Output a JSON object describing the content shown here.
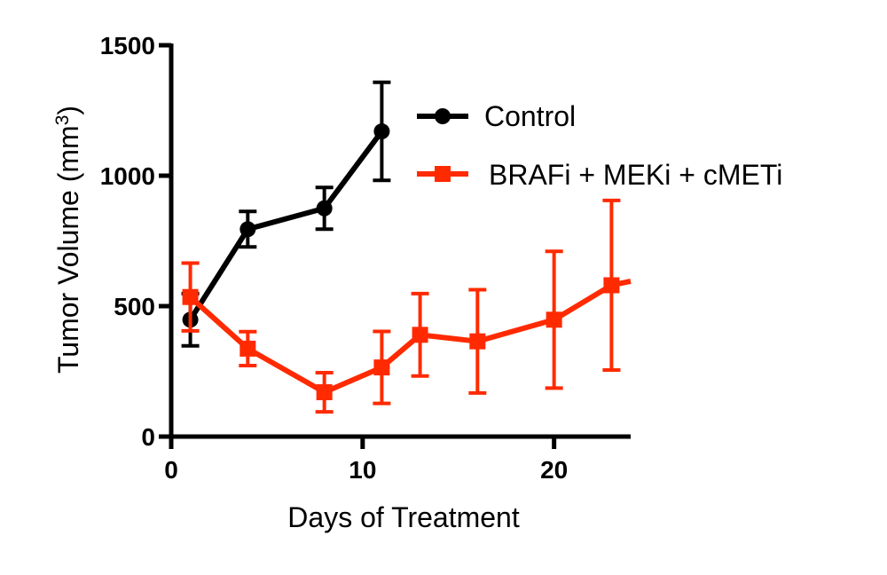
{
  "chart_data": {
    "type": "line",
    "title": "",
    "xlabel": "Days of Treatment",
    "ylabel": "Tumor Volume (mm",
    "ylabel_superscript": "3",
    "ylabel_suffix": ")",
    "xlim": [
      0,
      24
    ],
    "ylim": [
      0,
      1500
    ],
    "x_ticks": [
      0,
      10,
      20
    ],
    "x_tick_labels": [
      "0",
      "10",
      "20"
    ],
    "y_ticks": [
      0,
      500,
      1000,
      1500
    ],
    "y_tick_labels": [
      "0",
      "500",
      "1000",
      "1500"
    ],
    "grid": false,
    "legend_position": "top-right",
    "series": [
      {
        "name": "Control",
        "color": "#000000",
        "marker": "circle",
        "x": [
          1,
          4,
          8,
          11
        ],
        "y": [
          448,
          795,
          875,
          1170
        ],
        "error": [
          100,
          68,
          80,
          188
        ]
      },
      {
        "name": "BRAFi + MEKi + cMETi",
        "color": "#ff2a00",
        "marker": "square",
        "x": [
          1,
          4,
          8,
          11,
          13,
          16,
          20,
          23
        ],
        "y": [
          535,
          337,
          170,
          265,
          390,
          365,
          448,
          580
        ],
        "error": [
          130,
          65,
          75,
          138,
          158,
          198,
          262,
          325
        ]
      }
    ]
  }
}
